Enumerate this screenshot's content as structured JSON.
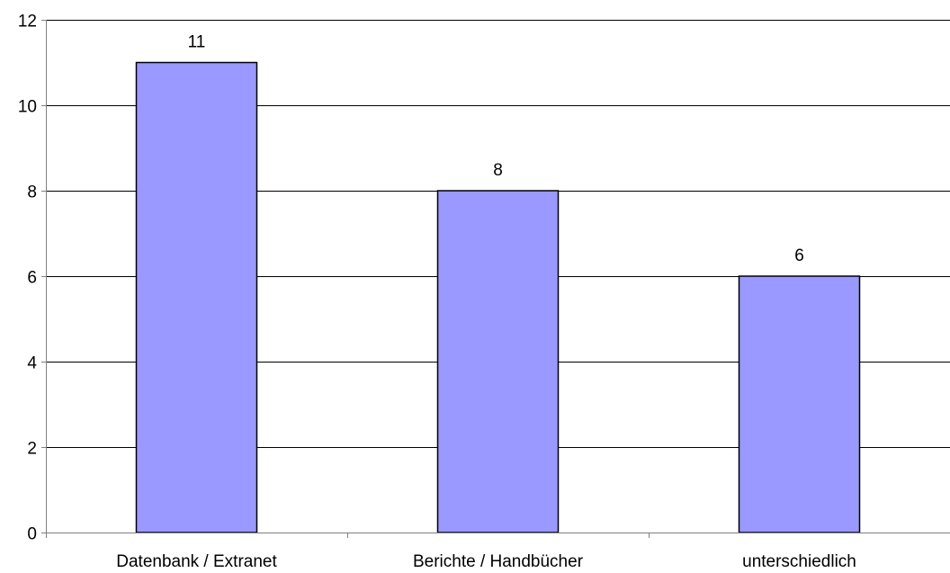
{
  "chart_data": {
    "type": "bar",
    "title": "",
    "xlabel": "",
    "ylabel": "",
    "categories": [
      "Datenbank / Extranet",
      "Berichte / Handbücher",
      "unterschiedlich"
    ],
    "values": [
      11,
      8,
      6
    ],
    "data_labels": [
      "11",
      "8",
      "6"
    ],
    "ylim": [
      0,
      12
    ],
    "yticks": [
      0,
      2,
      4,
      6,
      8,
      10,
      12
    ],
    "ytick_labels": [
      "0",
      "2",
      "4",
      "6",
      "8",
      "10",
      "12"
    ],
    "grid": true,
    "legend": "none",
    "colors": {
      "bar_fill": "#9999ff",
      "bar_stroke": "#000000",
      "grid": "#000000",
      "axis": "#808080"
    }
  }
}
